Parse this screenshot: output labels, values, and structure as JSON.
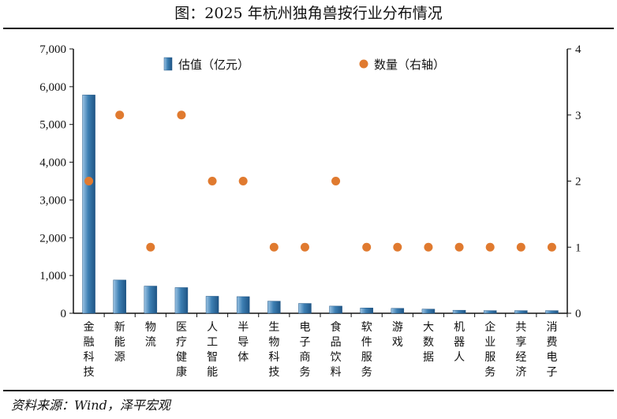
{
  "title": "图：2025 年杭州独角兽按行业分布情况",
  "source": "资料来源：Wind，泽平宏观",
  "chart_data": {
    "type": "bar",
    "categories": [
      "金融科技",
      "新能源",
      "物流",
      "医疗健康",
      "人工智能",
      "半导体",
      "生物科技",
      "电子商务",
      "食品饮料",
      "软件服务",
      "游戏",
      "大数据",
      "机器人",
      "企业服务",
      "共享经济",
      "消费电子"
    ],
    "series": [
      {
        "name": "估值（亿元）",
        "type": "bar",
        "axis": "left",
        "color": "#3d7fb3",
        "values": [
          5780,
          880,
          720,
          680,
          450,
          440,
          320,
          260,
          190,
          140,
          130,
          110,
          80,
          70,
          70,
          70
        ]
      },
      {
        "name": "数量（右轴）",
        "type": "scatter",
        "axis": "right",
        "color": "#e07a2f",
        "values": [
          2,
          3,
          1,
          3,
          2,
          2,
          1,
          1,
          2,
          1,
          1,
          1,
          1,
          1,
          1,
          1
        ]
      }
    ],
    "y_left": {
      "range": [
        0,
        7000
      ],
      "ticks": [
        "0",
        "1,000",
        "2,000",
        "3,000",
        "4,000",
        "5,000",
        "6,000",
        "7,000"
      ]
    },
    "y_right": {
      "range": [
        0,
        4
      ],
      "ticks": [
        "0",
        "1",
        "2",
        "3",
        "4"
      ]
    },
    "legend": "top-center",
    "grid": false
  }
}
